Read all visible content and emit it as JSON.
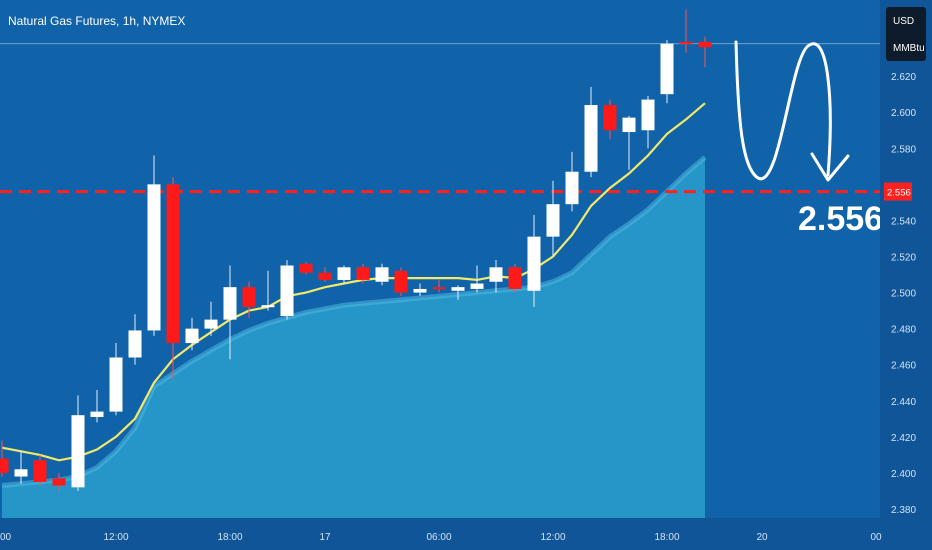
{
  "header": {
    "title": "Natural Gas Futures, 1h, NYMEX"
  },
  "price_axis": {
    "currency": "USD",
    "unit": "MMBtu"
  },
  "annotation": {
    "target_label": "2.556"
  },
  "colors": {
    "background": "#0f5598",
    "bullish": "#ffffff",
    "bearish": "#ff1a1a",
    "ema": "#f2e86a",
    "area_fill": "#2596c7",
    "area_line": "#4fb8e0",
    "target_line": "#ff2020",
    "price_badge": "#ff2020"
  },
  "chart_data": {
    "type": "candlestick",
    "title": "Natural Gas Futures, 1h, NYMEX",
    "xlabel": "",
    "ylabel": "",
    "ylim": [
      2.375,
      2.66
    ],
    "y_ticks": [
      2.38,
      2.4,
      2.42,
      2.44,
      2.46,
      2.48,
      2.5,
      2.52,
      2.54,
      2.56,
      2.58,
      2.6,
      2.62
    ],
    "y_tick_labels": [
      "2.380",
      "2.400",
      "2.420",
      "2.440",
      "2.460",
      "2.480",
      "2.500",
      "2.520",
      "2.540",
      "",
      "2.580",
      "2.600",
      "2.620"
    ],
    "x_ticks": [
      {
        "index": 0,
        "label": "00"
      },
      {
        "index": 6,
        "label": "12:00"
      },
      {
        "index": 12,
        "label": "18:00"
      },
      {
        "index": 17,
        "label": "17"
      },
      {
        "index": 23,
        "label": "06:00"
      },
      {
        "index": 29,
        "label": "12:00"
      },
      {
        "index": 35,
        "label": "18:00"
      },
      {
        "index": 40,
        "label": "20"
      },
      {
        "index": 46,
        "label": "00"
      }
    ],
    "candles": [
      {
        "o": 2.408,
        "h": 2.418,
        "l": 2.398,
        "c": 2.4
      },
      {
        "o": 2.398,
        "h": 2.412,
        "l": 2.394,
        "c": 2.402
      },
      {
        "o": 2.407,
        "h": 2.41,
        "l": 2.393,
        "c": 2.395
      },
      {
        "o": 2.397,
        "h": 2.4,
        "l": 2.39,
        "c": 2.393
      },
      {
        "o": 2.392,
        "h": 2.443,
        "l": 2.39,
        "c": 2.432
      },
      {
        "o": 2.431,
        "h": 2.446,
        "l": 2.428,
        "c": 2.434
      },
      {
        "o": 2.434,
        "h": 2.472,
        "l": 2.432,
        "c": 2.464
      },
      {
        "o": 2.464,
        "h": 2.488,
        "l": 2.46,
        "c": 2.479
      },
      {
        "o": 2.479,
        "h": 2.576,
        "l": 2.476,
        "c": 2.56
      },
      {
        "o": 2.56,
        "h": 2.564,
        "l": 2.452,
        "c": 2.472
      },
      {
        "o": 2.472,
        "h": 2.486,
        "l": 2.468,
        "c": 2.48
      },
      {
        "o": 2.48,
        "h": 2.495,
        "l": 2.476,
        "c": 2.485
      },
      {
        "o": 2.485,
        "h": 2.515,
        "l": 2.463,
        "c": 2.503
      },
      {
        "o": 2.503,
        "h": 2.506,
        "l": 2.486,
        "c": 2.492
      },
      {
        "o": 2.492,
        "h": 2.512,
        "l": 2.49,
        "c": 2.493
      },
      {
        "o": 2.487,
        "h": 2.518,
        "l": 2.485,
        "c": 2.515
      },
      {
        "o": 2.516,
        "h": 2.517,
        "l": 2.51,
        "c": 2.511
      },
      {
        "o": 2.511,
        "h": 2.514,
        "l": 2.506,
        "c": 2.507
      },
      {
        "o": 2.507,
        "h": 2.515,
        "l": 2.505,
        "c": 2.514
      },
      {
        "o": 2.514,
        "h": 2.516,
        "l": 2.505,
        "c": 2.507
      },
      {
        "o": 2.506,
        "h": 2.516,
        "l": 2.504,
        "c": 2.514
      },
      {
        "o": 2.512,
        "h": 2.514,
        "l": 2.498,
        "c": 2.5
      },
      {
        "o": 2.5,
        "h": 2.505,
        "l": 2.498,
        "c": 2.502
      },
      {
        "o": 2.503,
        "h": 2.507,
        "l": 2.5,
        "c": 2.502
      },
      {
        "o": 2.501,
        "h": 2.504,
        "l": 2.496,
        "c": 2.503
      },
      {
        "o": 2.502,
        "h": 2.515,
        "l": 2.5,
        "c": 2.505
      },
      {
        "o": 2.506,
        "h": 2.518,
        "l": 2.5,
        "c": 2.514
      },
      {
        "o": 2.514,
        "h": 2.516,
        "l": 2.5,
        "c": 2.502
      },
      {
        "o": 2.501,
        "h": 2.543,
        "l": 2.492,
        "c": 2.531
      },
      {
        "o": 2.531,
        "h": 2.562,
        "l": 2.52,
        "c": 2.549
      },
      {
        "o": 2.549,
        "h": 2.578,
        "l": 2.545,
        "c": 2.567
      },
      {
        "o": 2.567,
        "h": 2.614,
        "l": 2.564,
        "c": 2.604
      },
      {
        "o": 2.604,
        "h": 2.607,
        "l": 2.585,
        "c": 2.59
      },
      {
        "o": 2.589,
        "h": 2.598,
        "l": 2.568,
        "c": 2.597
      },
      {
        "o": 2.59,
        "h": 2.609,
        "l": 2.58,
        "c": 2.607
      },
      {
        "o": 2.61,
        "h": 2.64,
        "l": 2.605,
        "c": 2.638
      },
      {
        "o": 2.639,
        "h": 2.657,
        "l": 2.633,
        "c": 2.638
      },
      {
        "o": 2.639,
        "h": 2.642,
        "l": 2.625,
        "c": 2.636
      }
    ],
    "series": [
      {
        "type": "line",
        "values": [
          2.414,
          2.412,
          2.41,
          2.407,
          2.409,
          2.413,
          2.42,
          2.43,
          2.45,
          2.463,
          2.471,
          2.478,
          2.485,
          2.49,
          2.492,
          2.498,
          2.5,
          2.503,
          2.505,
          2.507,
          2.508,
          2.508,
          2.508,
          2.508,
          2.508,
          2.507,
          2.509,
          2.508,
          2.513,
          2.52,
          2.532,
          2.548,
          2.558,
          2.566,
          2.576,
          2.588,
          2.596,
          2.605
        ]
      },
      {
        "type": "area",
        "values": [
          2.393,
          2.394,
          2.395,
          2.396,
          2.398,
          2.403,
          2.412,
          2.425,
          2.448,
          2.455,
          2.462,
          2.468,
          2.474,
          2.479,
          2.483,
          2.486,
          2.489,
          2.491,
          2.493,
          2.494,
          2.495,
          2.496,
          2.497,
          2.498,
          2.499,
          2.5,
          2.501,
          2.502,
          2.503,
          2.506,
          2.511,
          2.521,
          2.531,
          2.538,
          2.546,
          2.556,
          2.566,
          2.575
        ]
      }
    ],
    "current_price_line": 2.638,
    "target_level": 2.556,
    "target_badge_label": "2.556",
    "grid": false,
    "legend": "none"
  }
}
